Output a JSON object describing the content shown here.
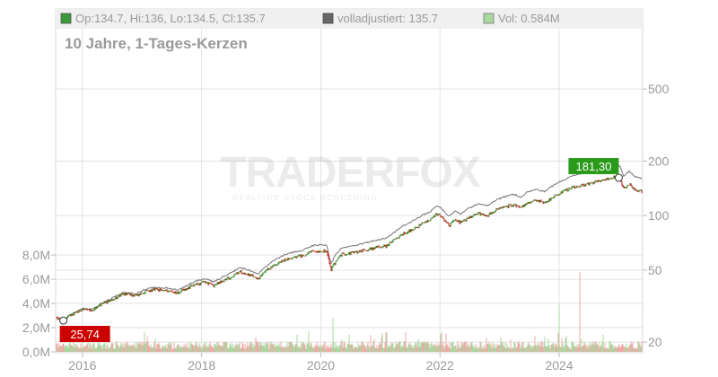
{
  "legend": {
    "ohlc": "Op:134.7, Hi:136, Lo:134.5, Cl:135.7",
    "adjusted": "volladjustiert: 135.7",
    "volume": "Vol: 0.584M"
  },
  "subtitle": "10 Jahre, 1-Tages-Kerzen",
  "watermark": {
    "brand": "TRADERFOX",
    "tagline": "REALTIME STOCK SCREENING"
  },
  "colors": {
    "up": "#2e8b22",
    "down": "#cc1f1f",
    "adjusted_line": "#777777",
    "legend_ohlc": "#3a9a3a",
    "legend_adjusted": "#666666",
    "legend_volume": "#a8d8a0",
    "badge_high": "#2a9a1a",
    "badge_low": "#cc0000",
    "vol_up": "#a8d8a0",
    "vol_down": "#f2a8a8"
  },
  "chart_data": {
    "type": "candlestick",
    "price_scale": "log",
    "price_ticks": [
      {
        "value": 500,
        "label": "500"
      },
      {
        "value": 200,
        "label": "200"
      },
      {
        "value": 100,
        "label": "100"
      },
      {
        "value": 50,
        "label": "50"
      },
      {
        "value": 20,
        "label": "20"
      }
    ],
    "price_range": [
      18.5,
      800
    ],
    "volume_ticks": [
      {
        "value": 0,
        "label": "0,0M"
      },
      {
        "value": 2,
        "label": "2,0M"
      },
      {
        "value": 4,
        "label": "4,0M"
      },
      {
        "value": 6,
        "label": "6,0M"
      },
      {
        "value": 8,
        "label": "8,0M"
      }
    ],
    "volume_range": [
      0,
      8.6
    ],
    "x_range": [
      2015.55,
      2025.4
    ],
    "x_ticks": [
      {
        "value": 2016,
        "label": "2016"
      },
      {
        "value": 2018,
        "label": "2018"
      },
      {
        "value": 2020,
        "label": "2020"
      },
      {
        "value": 2022,
        "label": "2022"
      },
      {
        "value": 2024,
        "label": "2024"
      }
    ],
    "close_path": [
      [
        2015.55,
        27.5
      ],
      [
        2015.63,
        26.5
      ],
      [
        2015.68,
        25.74
      ],
      [
        2015.75,
        27.5
      ],
      [
        2015.85,
        28.8
      ],
      [
        2016.0,
        30.5
      ],
      [
        2016.15,
        29.8
      ],
      [
        2016.3,
        32.0
      ],
      [
        2016.5,
        34.5
      ],
      [
        2016.7,
        37.0
      ],
      [
        2016.9,
        36.0
      ],
      [
        2017.05,
        38.0
      ],
      [
        2017.2,
        39.0
      ],
      [
        2017.4,
        38.5
      ],
      [
        2017.6,
        37.5
      ],
      [
        2017.75,
        39.5
      ],
      [
        2017.9,
        41.5
      ],
      [
        2018.05,
        43.0
      ],
      [
        2018.2,
        41.0
      ],
      [
        2018.35,
        43.5
      ],
      [
        2018.5,
        46.0
      ],
      [
        2018.65,
        49.0
      ],
      [
        2018.8,
        47.0
      ],
      [
        2018.95,
        45.0
      ],
      [
        2019.1,
        50.0
      ],
      [
        2019.25,
        54.0
      ],
      [
        2019.4,
        57.0
      ],
      [
        2019.55,
        58.5
      ],
      [
        2019.7,
        60.0
      ],
      [
        2019.85,
        63.0
      ],
      [
        2020.0,
        64.0
      ],
      [
        2020.1,
        63.0
      ],
      [
        2020.17,
        50.0
      ],
      [
        2020.25,
        56.0
      ],
      [
        2020.35,
        61.0
      ],
      [
        2020.5,
        62.0
      ],
      [
        2020.65,
        63.5
      ],
      [
        2020.8,
        65.0
      ],
      [
        2020.95,
        67.0
      ],
      [
        2021.1,
        68.0
      ],
      [
        2021.25,
        74.0
      ],
      [
        2021.4,
        80.0
      ],
      [
        2021.55,
        84.0
      ],
      [
        2021.7,
        90.0
      ],
      [
        2021.85,
        95.0
      ],
      [
        2021.95,
        102.0
      ],
      [
        2022.05,
        96.0
      ],
      [
        2022.15,
        88.0
      ],
      [
        2022.25,
        95.0
      ],
      [
        2022.35,
        91.0
      ],
      [
        2022.5,
        98.0
      ],
      [
        2022.65,
        103.0
      ],
      [
        2022.8,
        100.0
      ],
      [
        2022.95,
        108.0
      ],
      [
        2023.1,
        112.0
      ],
      [
        2023.25,
        115.0
      ],
      [
        2023.35,
        110.0
      ],
      [
        2023.45,
        117.0
      ],
      [
        2023.6,
        122.0
      ],
      [
        2023.75,
        118.0
      ],
      [
        2023.9,
        127.0
      ],
      [
        2024.05,
        135.0
      ],
      [
        2024.2,
        142.0
      ],
      [
        2024.35,
        146.0
      ],
      [
        2024.5,
        150.0
      ],
      [
        2024.65,
        155.0
      ],
      [
        2024.8,
        160.0
      ],
      [
        2024.9,
        162.0
      ],
      [
        2024.97,
        166.0
      ],
      [
        2025.03,
        158.0
      ],
      [
        2025.08,
        140.0
      ],
      [
        2025.13,
        145.0
      ],
      [
        2025.18,
        150.0
      ],
      [
        2025.24,
        142.0
      ],
      [
        2025.3,
        138.0
      ],
      [
        2025.4,
        135.7
      ]
    ],
    "adjusted_ratio_start": 1.0,
    "adjusted_ratio_end": 1.18,
    "annotations": [
      {
        "label": "181,30",
        "x": 2025.0,
        "value": 181.3,
        "kind": "high"
      },
      {
        "label": "25,74",
        "x": 2015.68,
        "value": 25.74,
        "kind": "low"
      }
    ],
    "volume_spikes": [
      {
        "x": 2020.2,
        "value": 2.8
      },
      {
        "x": 2024.35,
        "value": 6.6
      },
      {
        "x": 2024.0,
        "value": 3.9
      },
      {
        "x": 2019.8,
        "value": 1.7
      },
      {
        "x": 2021.1,
        "value": 1.6
      }
    ],
    "volume_base": 0.7
  }
}
